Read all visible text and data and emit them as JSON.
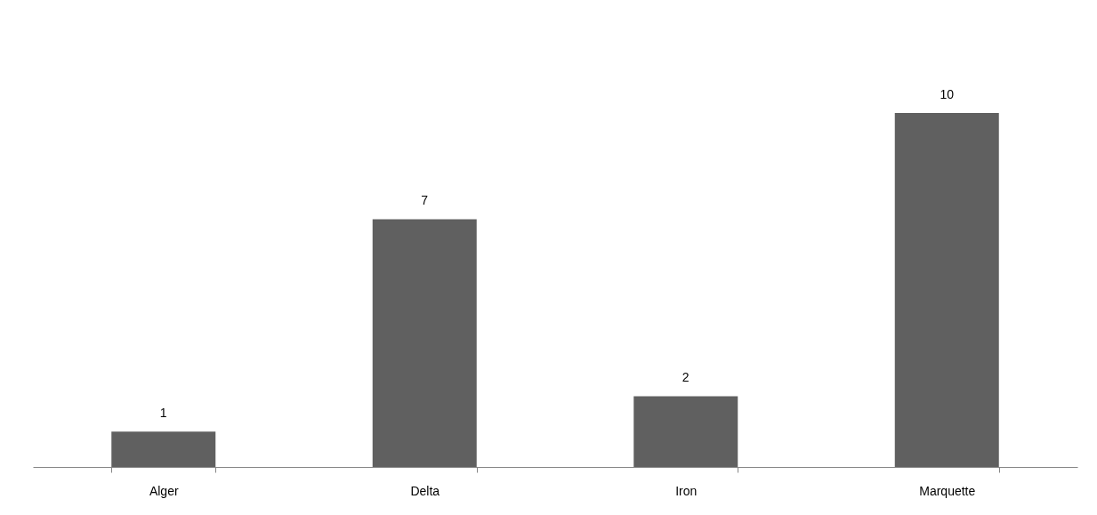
{
  "chart_data": {
    "type": "bar",
    "categories": [
      "Alger",
      "Delta",
      "Iron",
      "Marquette"
    ],
    "values": [
      1,
      7,
      2,
      10
    ],
    "color": "#606060",
    "data_labels": true,
    "grid": false
  }
}
